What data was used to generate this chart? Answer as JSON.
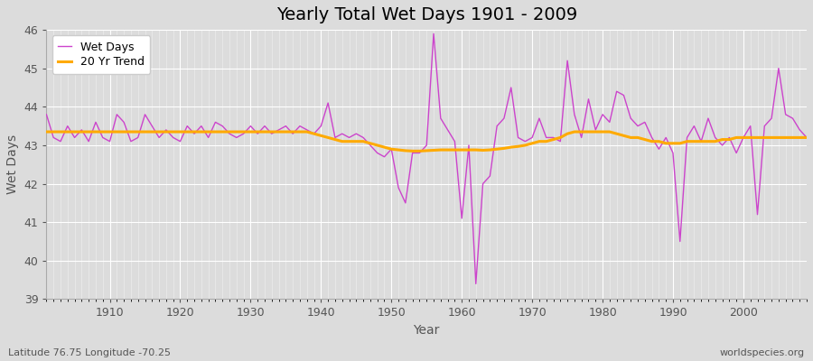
{
  "title": "Yearly Total Wet Days 1901 - 2009",
  "xlabel": "Year",
  "ylabel": "Wet Days",
  "ylim": [
    39,
    46
  ],
  "xlim": [
    1901,
    2009
  ],
  "bg_color": "#dcdcdc",
  "plot_bg_color": "#dcdcdc",
  "wet_days_color": "#cc44cc",
  "trend_color": "#ffaa00",
  "subtitle_left": "Latitude 76.75 Longitude -70.25",
  "subtitle_right": "worldspecies.org",
  "years": [
    1901,
    1902,
    1903,
    1904,
    1905,
    1906,
    1907,
    1908,
    1909,
    1910,
    1911,
    1912,
    1913,
    1914,
    1915,
    1916,
    1917,
    1918,
    1919,
    1920,
    1921,
    1922,
    1923,
    1924,
    1925,
    1926,
    1927,
    1928,
    1929,
    1930,
    1931,
    1932,
    1933,
    1934,
    1935,
    1936,
    1937,
    1938,
    1939,
    1940,
    1941,
    1942,
    1943,
    1944,
    1945,
    1946,
    1947,
    1948,
    1949,
    1950,
    1951,
    1952,
    1953,
    1954,
    1955,
    1956,
    1957,
    1958,
    1959,
    1960,
    1961,
    1962,
    1963,
    1964,
    1965,
    1966,
    1967,
    1968,
    1969,
    1970,
    1971,
    1972,
    1973,
    1974,
    1975,
    1976,
    1977,
    1978,
    1979,
    1980,
    1981,
    1982,
    1983,
    1984,
    1985,
    1986,
    1987,
    1988,
    1989,
    1990,
    1991,
    1992,
    1993,
    1994,
    1995,
    1996,
    1997,
    1998,
    1999,
    2000,
    2001,
    2002,
    2003,
    2004,
    2005,
    2006,
    2007,
    2008,
    2009
  ],
  "wet_days": [
    43.8,
    43.2,
    43.1,
    43.5,
    43.2,
    43.4,
    43.1,
    43.6,
    43.2,
    43.1,
    43.8,
    43.6,
    43.1,
    43.2,
    43.8,
    43.5,
    43.2,
    43.4,
    43.2,
    43.1,
    43.5,
    43.3,
    43.5,
    43.2,
    43.6,
    43.5,
    43.3,
    43.2,
    43.3,
    43.5,
    43.3,
    43.5,
    43.3,
    43.4,
    43.5,
    43.3,
    43.5,
    43.4,
    43.3,
    43.5,
    44.1,
    43.2,
    43.3,
    43.2,
    43.3,
    43.2,
    43.0,
    42.8,
    42.7,
    42.9,
    41.9,
    41.5,
    42.8,
    42.8,
    43.0,
    45.9,
    43.7,
    43.4,
    43.1,
    41.1,
    43.0,
    39.4,
    42.0,
    42.2,
    43.5,
    43.7,
    44.5,
    43.2,
    43.1,
    43.2,
    43.7,
    43.2,
    43.2,
    43.1,
    45.2,
    43.8,
    43.2,
    44.2,
    43.4,
    43.8,
    43.6,
    44.4,
    44.3,
    43.7,
    43.5,
    43.6,
    43.2,
    42.9,
    43.2,
    42.8,
    40.5,
    43.2,
    43.5,
    43.1,
    43.7,
    43.2,
    43.0,
    43.2,
    42.8,
    43.2,
    43.5,
    41.2,
    43.5,
    43.7,
    45.0,
    43.8,
    43.7,
    43.4,
    43.2
  ],
  "trend": [
    43.35,
    43.35,
    43.35,
    43.35,
    43.35,
    43.35,
    43.35,
    43.35,
    43.35,
    43.35,
    43.35,
    43.35,
    43.35,
    43.35,
    43.35,
    43.35,
    43.35,
    43.35,
    43.35,
    43.35,
    43.35,
    43.35,
    43.35,
    43.35,
    43.35,
    43.35,
    43.35,
    43.35,
    43.35,
    43.35,
    43.35,
    43.35,
    43.35,
    43.35,
    43.35,
    43.35,
    43.35,
    43.35,
    43.3,
    43.25,
    43.2,
    43.15,
    43.1,
    43.1,
    43.1,
    43.1,
    43.05,
    43.0,
    42.95,
    42.9,
    42.88,
    42.86,
    42.85,
    42.85,
    42.86,
    42.87,
    42.88,
    42.88,
    42.88,
    42.88,
    42.88,
    42.88,
    42.87,
    42.88,
    42.9,
    42.92,
    42.95,
    42.97,
    43.0,
    43.05,
    43.1,
    43.1,
    43.15,
    43.2,
    43.3,
    43.35,
    43.35,
    43.35,
    43.35,
    43.35,
    43.35,
    43.3,
    43.25,
    43.2,
    43.2,
    43.15,
    43.1,
    43.1,
    43.05,
    43.05,
    43.05,
    43.1,
    43.1,
    43.1,
    43.1,
    43.1,
    43.15,
    43.15,
    43.2,
    43.2,
    43.2,
    43.2,
    43.2,
    43.2,
    43.2,
    43.2,
    43.2,
    43.2,
    43.2
  ],
  "grid_color": "#ffffff",
  "spine_color": "#aaaaaa",
  "tick_color": "#555555",
  "tick_fontsize": 9,
  "title_fontsize": 14,
  "label_fontsize": 10,
  "legend_fontsize": 9
}
